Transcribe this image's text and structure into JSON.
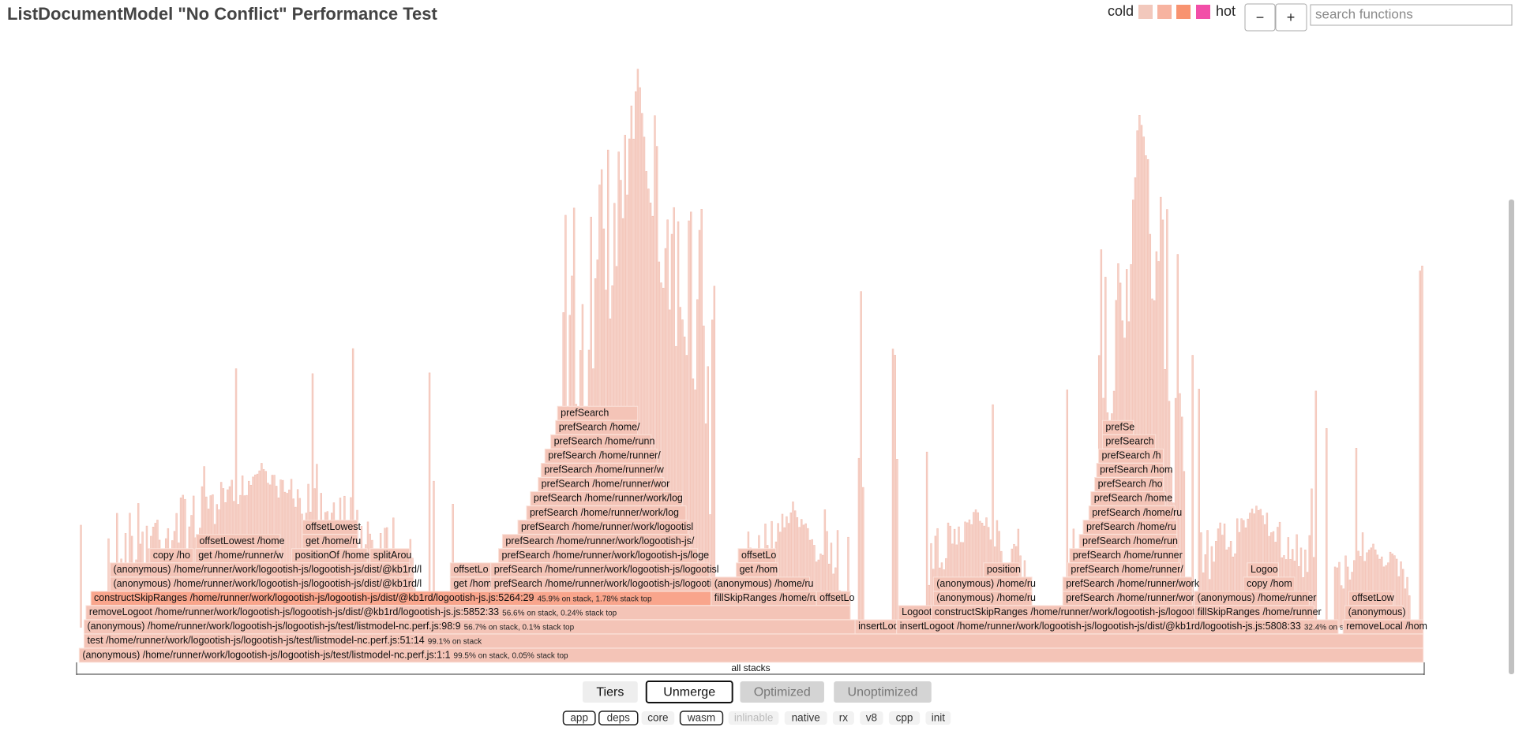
{
  "header": {
    "title": "ListDocumentModel \"No Conflict\" Performance Test",
    "legend_cold": "cold",
    "legend_hot": "hot",
    "zoom_out": "−",
    "zoom_in": "+",
    "search_placeholder": "search functions"
  },
  "root_label": "all stacks",
  "frames": [
    {
      "label": "(anonymous) /home/runner/work/logootish-js/logootish-js/test/listmodel-nc.perf.js:1:1",
      "stats": "99.5% on stack, 0.05% stack top"
    },
    {
      "label": "test /home/runner/work/logootish-js/logootish-js/test/listmodel-nc.perf.js:51:14",
      "stats": "99.1% on stack"
    },
    {
      "label": "(anonymous) /home/runner/work/logootish-js/logootish-js/test/listmodel-nc.perf.js:98:9",
      "stats": "56.7% on stack, 0.1% stack top"
    },
    {
      "label": "insertLoc"
    },
    {
      "label": "insertLogoot /home/runner/work/logootish-js/logootish-js/dist/@kb1rd/logootish-js.js:5808:33",
      "stats": "32.4% on sta"
    },
    {
      "label": "removeLocal /hom"
    },
    {
      "label": "removeLogoot /home/runner/work/logootish-js/logootish-js/dist/@kb1rd/logootish-js.js:5852:33",
      "stats": "56.6% on stack, 0.24% stack top"
    },
    {
      "label": "Logoot"
    },
    {
      "label": "constructSkipRanges /home/runner/work/logootish-js/logootisl"
    },
    {
      "label": "fillSkipRanges /home/runner"
    },
    {
      "label": "(anonymous)"
    },
    {
      "label": "constructSkipRanges /home/runner/work/logootish-js/logootish-js/dist/@kb1rd/logootish-js.js:5264:29",
      "stats": "45.9% on stack, 1.78% stack top"
    },
    {
      "label": "fillSkipRanges /home/ru"
    },
    {
      "label": "offsetLo"
    },
    {
      "label": "(anonymous) /home/ru"
    },
    {
      "label": "prefSearch /home/runner/work"
    },
    {
      "label": "(anonymous) /home/runner"
    },
    {
      "label": "offsetLow"
    },
    {
      "label": "(anonymous) /home/runner/work/logootish-js/logootish-js/dist/@kb1rd/l"
    },
    {
      "label": "get /home"
    },
    {
      "label": "prefSearch /home/runner/work/logootish-js/logootisl"
    },
    {
      "label": "(anonymous) /home/ru"
    },
    {
      "label": "(anonymous) /home/ru"
    },
    {
      "label": "prefSearch /home/runner/work"
    },
    {
      "label": "copy /hom"
    },
    {
      "label": "(anonymous) /home/runner/work/logootish-js/logootish-js/dist/@kb1rd/l"
    },
    {
      "label": "offsetLo"
    },
    {
      "label": "prefSearch /home/runner/work/logootish-js/logootisl"
    },
    {
      "label": "get /hom"
    },
    {
      "label": "position"
    },
    {
      "label": "prefSearch /home/runner/"
    },
    {
      "label": "Logoo"
    },
    {
      "label": "copy /ho"
    },
    {
      "label": "get /home/runner/w"
    },
    {
      "label": "positionOf /home/"
    },
    {
      "label": "splitArou"
    },
    {
      "label": "prefSearch /home/runner/work/logootish-js/loge"
    },
    {
      "label": "offsetLo"
    },
    {
      "label": "prefSearch /home/runner"
    },
    {
      "label": "offsetLowest /home"
    },
    {
      "label": "get /home/ru"
    },
    {
      "label": "prefSearch /home/runner/work/logootish-js/"
    },
    {
      "label": "prefSearch /home/run"
    },
    {
      "label": "offsetLowest"
    },
    {
      "label": "prefSearch /home/runner/work/logootisl"
    },
    {
      "label": "prefSearch /home/ru"
    },
    {
      "label": "prefSearch /home/runner/work/log"
    },
    {
      "label": "prefSearch /home/ru"
    },
    {
      "label": "prefSearch /home/runner/work/log"
    },
    {
      "label": "prefSearch /home"
    },
    {
      "label": "prefSearch /home/runner/wor"
    },
    {
      "label": "prefSearch /ho"
    },
    {
      "label": "prefSearch /home/runner/w"
    },
    {
      "label": "prefSearch /hom"
    },
    {
      "label": "prefSearch /home/runner/"
    },
    {
      "label": "prefSearch /h"
    },
    {
      "label": "prefSearch /home/runn"
    },
    {
      "label": "prefSearch"
    },
    {
      "label": "prefSearch /home/"
    },
    {
      "label": "prefSe"
    },
    {
      "label": "prefSearch"
    }
  ],
  "tier_buttons": [
    "Tiers",
    "Unmerge",
    "Optimized",
    "Unoptimized"
  ],
  "filters": [
    "app",
    "deps",
    "core",
    "wasm",
    "inlinable",
    "native",
    "rx",
    "v8",
    "cpp",
    "init"
  ]
}
